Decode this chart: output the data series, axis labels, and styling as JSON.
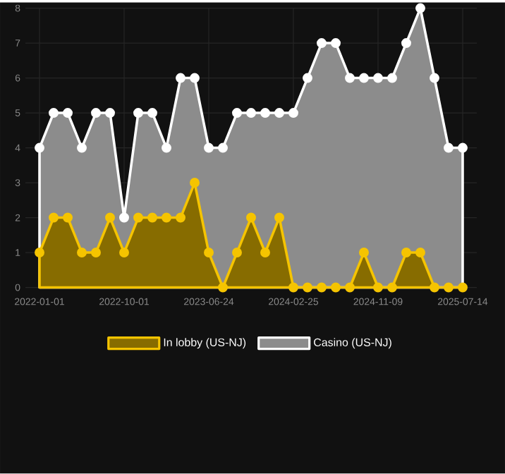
{
  "chart_data": {
    "type": "area",
    "categories": [
      "2022-01-01",
      null,
      null,
      null,
      null,
      null,
      "2022-10-01",
      null,
      null,
      null,
      null,
      null,
      "2023-06-24",
      null,
      null,
      null,
      null,
      null,
      "2024-02-25",
      null,
      null,
      null,
      null,
      null,
      "2024-11-09",
      null,
      null,
      null,
      null,
      null,
      "2025-07-14"
    ],
    "series": [
      {
        "name": "In lobby (US-NJ)",
        "color": "#f5c400",
        "values": [
          1,
          2,
          2,
          1,
          1,
          2,
          1,
          2,
          2,
          2,
          2,
          3,
          1,
          0,
          1,
          2,
          1,
          2,
          0,
          0,
          0,
          0,
          0,
          1,
          0,
          0,
          1,
          1,
          0,
          0,
          0
        ]
      },
      {
        "name": "Casino (US-NJ)",
        "color": "#ffffff",
        "values": [
          4,
          5,
          5,
          4,
          5,
          5,
          2,
          5,
          5,
          4,
          6,
          6,
          4,
          4,
          5,
          5,
          5,
          5,
          5,
          6,
          7,
          7,
          6,
          6,
          6,
          6,
          7,
          8,
          6,
          4,
          4
        ]
      }
    ],
    "ylim": [
      0,
      8
    ],
    "yticks": [
      0,
      1,
      2,
      3,
      4,
      5,
      6,
      7,
      8
    ],
    "grid": true,
    "legend": "bottom",
    "marker": "circle",
    "line_style": "solid"
  }
}
